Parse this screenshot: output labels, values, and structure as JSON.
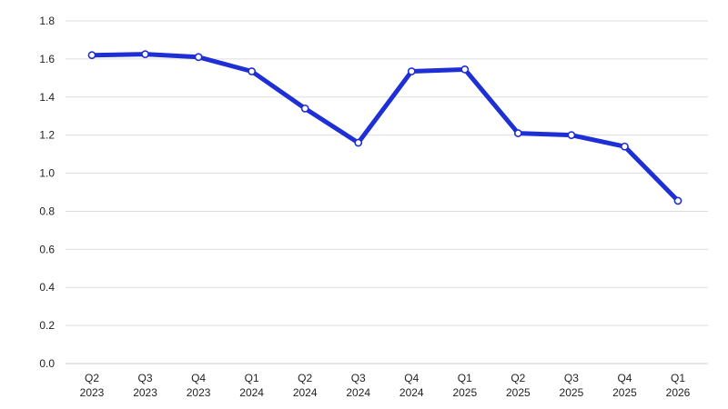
{
  "chart_data": {
    "type": "line",
    "title": "",
    "xlabel": "",
    "ylabel": "",
    "categories": [
      [
        "Q2",
        "2023"
      ],
      [
        "Q3",
        "2023"
      ],
      [
        "Q4",
        "2023"
      ],
      [
        "Q1",
        "2024"
      ],
      [
        "Q2",
        "2024"
      ],
      [
        "Q3",
        "2024"
      ],
      [
        "Q4",
        "2024"
      ],
      [
        "Q1",
        "2025"
      ],
      [
        "Q2",
        "2025"
      ],
      [
        "Q3",
        "2025"
      ],
      [
        "Q4",
        "2025"
      ],
      [
        "Q1",
        "2026"
      ]
    ],
    "series": [
      {
        "values": [
          1.62,
          1.625,
          1.61,
          1.535,
          1.34,
          1.16,
          1.535,
          1.545,
          1.21,
          1.2,
          1.14,
          0.855
        ],
        "color": "#1f2fd6"
      }
    ],
    "ylim": [
      0,
      1.8
    ],
    "yticks": [
      "0.0",
      "0.2",
      "0.4",
      "0.6",
      "0.8",
      "1.0",
      "1.2",
      "1.4",
      "1.6",
      "1.8"
    ],
    "grid": "horizontal",
    "legend": "none",
    "marker_fill": "#ffffff"
  }
}
